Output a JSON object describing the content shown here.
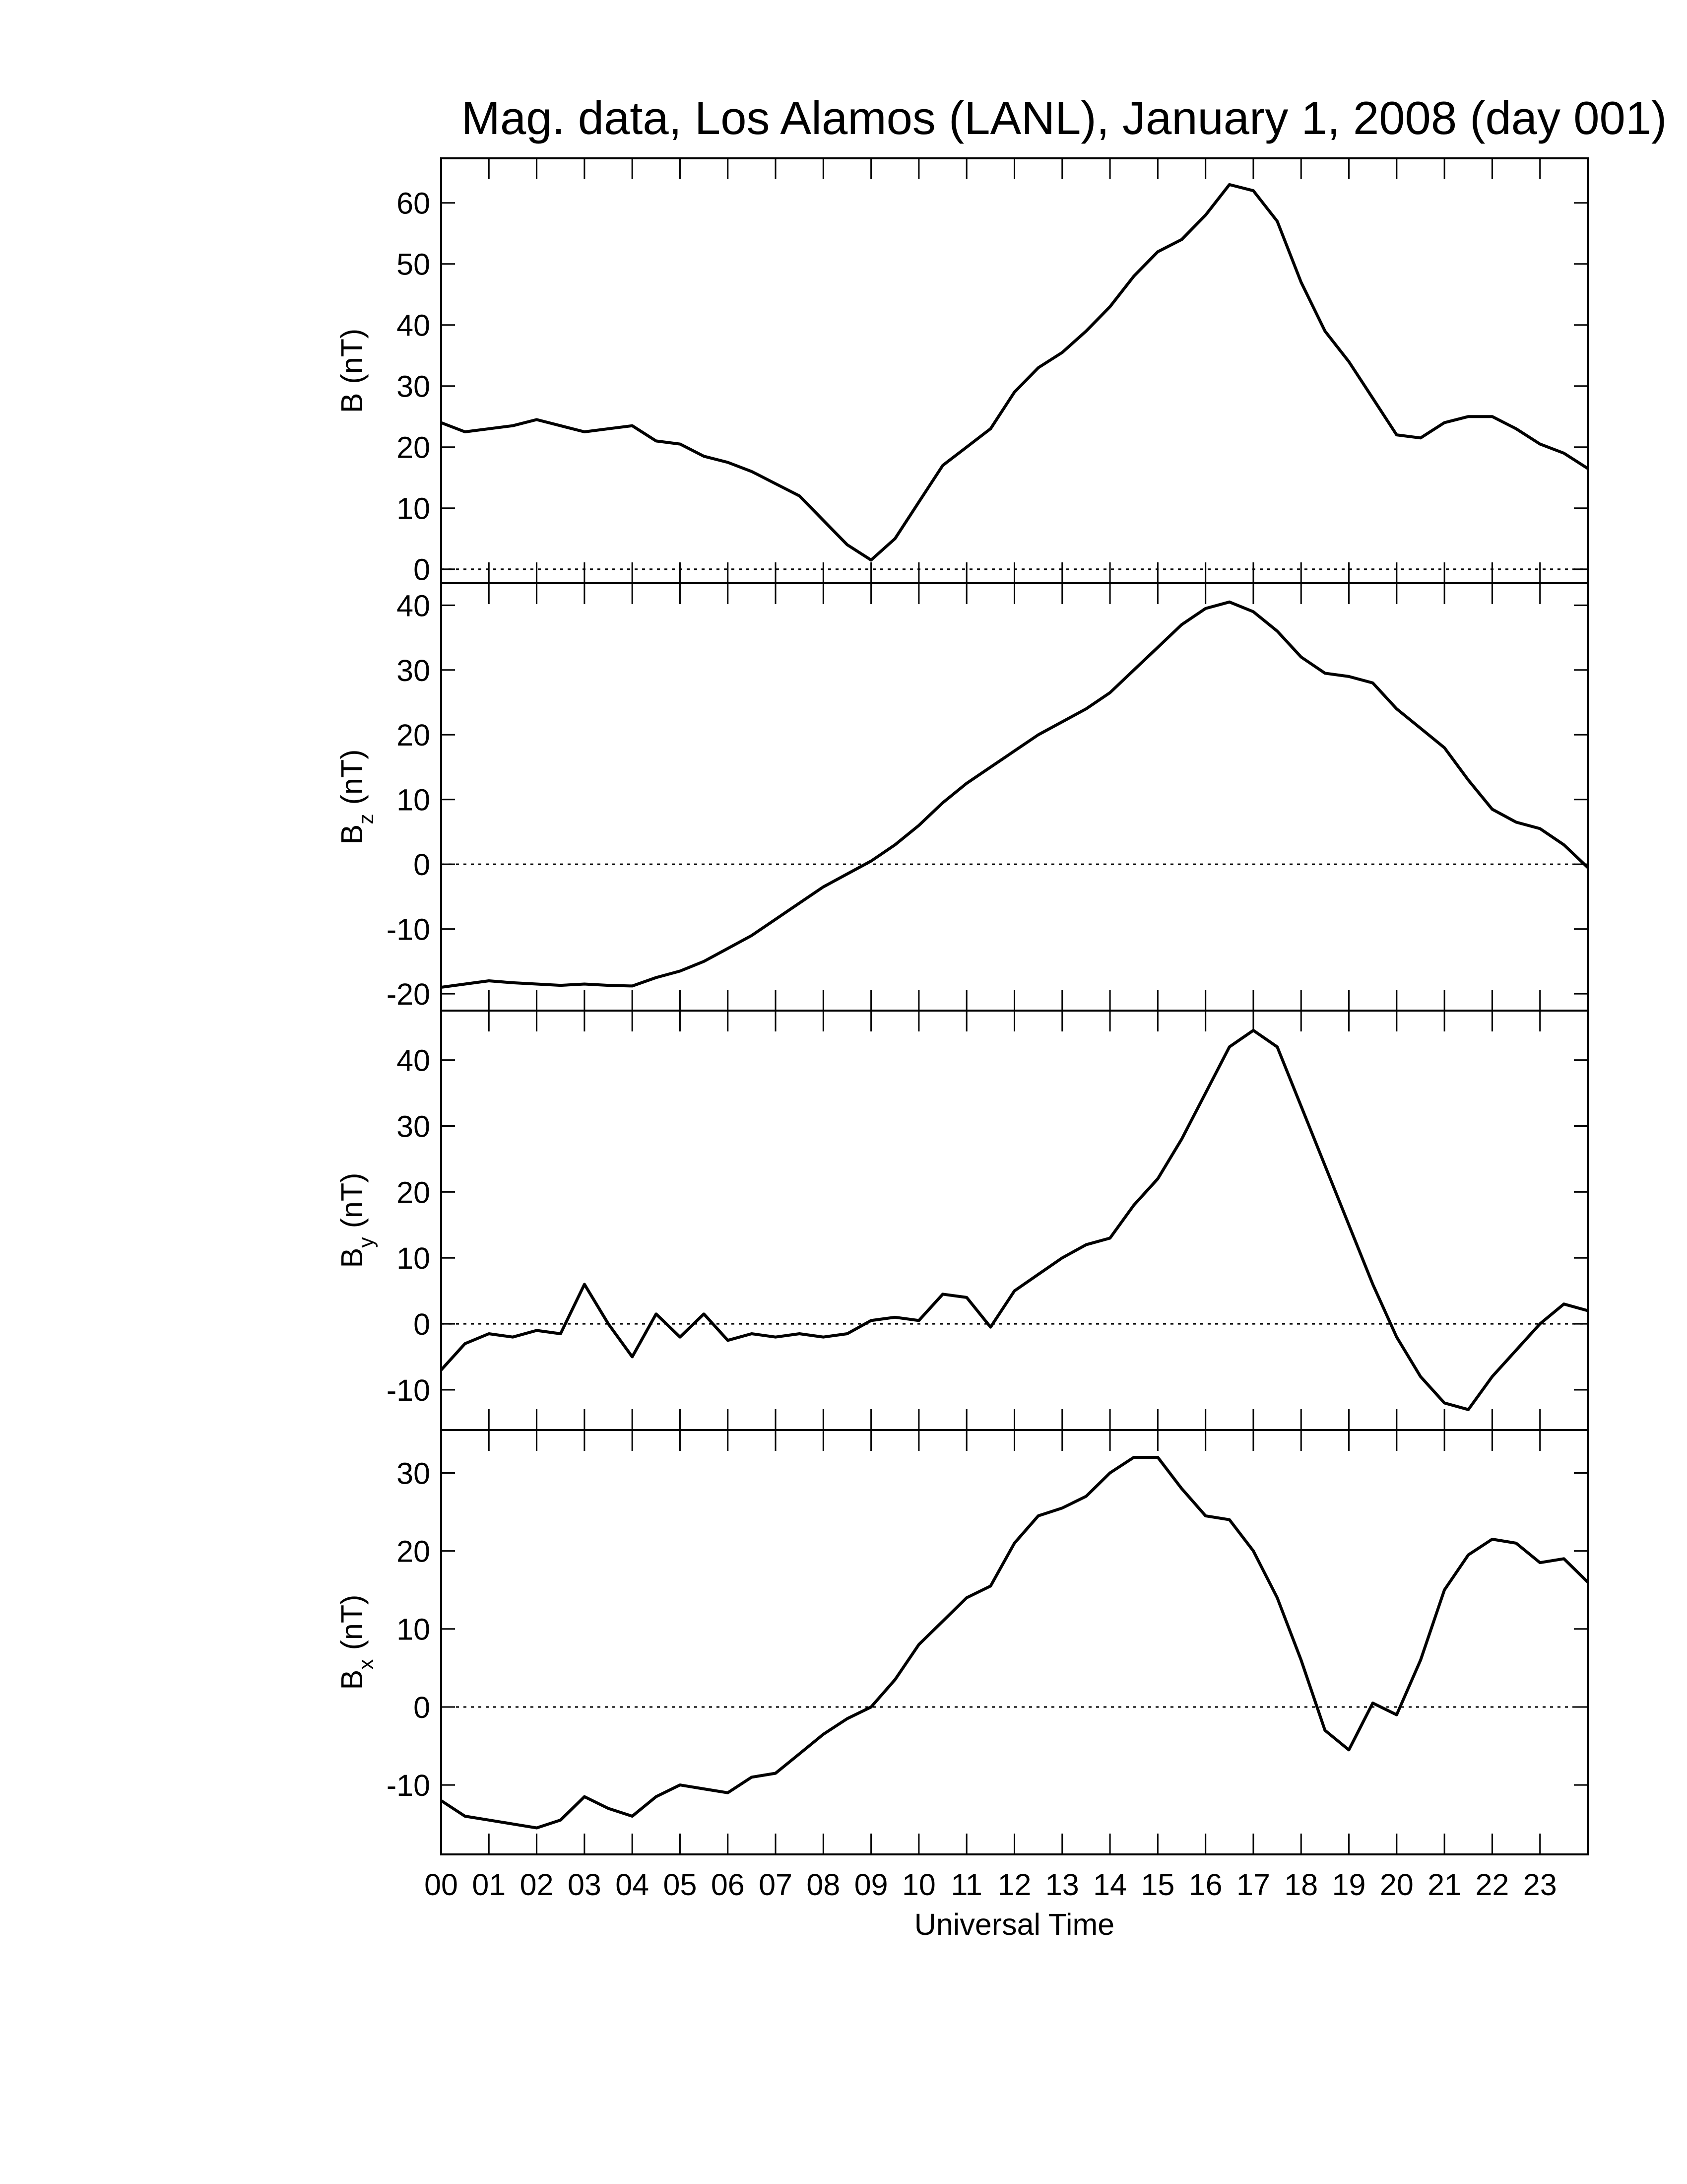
{
  "chart_data": [
    {
      "type": "line",
      "title": "Mag. data, Los Alamos (LANL), January 1, 2008 (day 001)",
      "ylabel": "B",
      "ylabel_unit": "(nT)",
      "color": "#000000",
      "zero_line": true,
      "x": [
        0,
        0.5,
        1,
        1.5,
        2,
        2.5,
        3,
        3.5,
        4,
        4.5,
        5,
        5.5,
        6,
        6.5,
        7,
        7.5,
        8,
        8.5,
        9,
        9.5,
        10,
        10.5,
        11,
        11.5,
        12,
        12.5,
        13,
        13.5,
        14,
        14.5,
        15,
        15.5,
        16,
        16.5,
        17,
        17.5,
        18,
        18.5,
        19,
        19.5,
        20,
        20.5,
        21,
        21.5,
        22,
        22.5,
        23,
        23.5,
        24
      ],
      "values": [
        24,
        22.5,
        23,
        23.5,
        24.5,
        23.5,
        22.5,
        23,
        23.5,
        21,
        20.5,
        18.5,
        17.5,
        16,
        14,
        12,
        8,
        4,
        1.5,
        5,
        11,
        17,
        20,
        23,
        29,
        33,
        35.5,
        39,
        43,
        48,
        52,
        54,
        58,
        63,
        62,
        57,
        47,
        39,
        34,
        28,
        22,
        21.5,
        24,
        25,
        25,
        23,
        20.5,
        19,
        16.5
      ],
      "xlim": [
        0,
        24
      ],
      "ylim": [
        -2.3,
        67.3
      ],
      "yticks": [
        0,
        10,
        20,
        30,
        40,
        50,
        60
      ]
    },
    {
      "type": "line",
      "ylabel": "B",
      "ylabel_sub": "z",
      "ylabel_unit": "(nT)",
      "color": "#000000",
      "zero_line": true,
      "x": [
        0,
        0.5,
        1,
        1.5,
        2,
        2.5,
        3,
        3.5,
        4,
        4.5,
        5,
        5.5,
        6,
        6.5,
        7,
        7.5,
        8,
        8.5,
        9,
        9.5,
        10,
        10.5,
        11,
        11.5,
        12,
        12.5,
        13,
        13.5,
        14,
        14.5,
        15,
        15.5,
        16,
        16.5,
        17,
        17.5,
        18,
        18.5,
        19,
        19.5,
        20,
        20.5,
        21,
        21.5,
        22,
        22.5,
        23,
        23.5,
        24
      ],
      "values": [
        -19,
        -18.5,
        -18,
        -18.3,
        -18.5,
        -18.7,
        -18.5,
        -18.7,
        -18.8,
        -17.5,
        -16.5,
        -15,
        -13,
        -11,
        -8.5,
        -6,
        -3.5,
        -1.5,
        0.5,
        3,
        6,
        9.5,
        12.5,
        15,
        17.5,
        20,
        22,
        24,
        26.5,
        30,
        33.5,
        37,
        39.5,
        40.5,
        39,
        36,
        32,
        29.5,
        29,
        28,
        24,
        21,
        18,
        13,
        8.5,
        6.5,
        5.5,
        3,
        -0.5
      ],
      "xlim": [
        0,
        24
      ],
      "ylim": [
        -22.6,
        43.4
      ],
      "yticks": [
        -20,
        -10,
        0,
        10,
        20,
        30,
        40
      ]
    },
    {
      "type": "line",
      "ylabel": "B",
      "ylabel_sub": "y",
      "ylabel_unit": "(nT)",
      "color": "#000000",
      "zero_line": true,
      "x": [
        0,
        0.5,
        1,
        1.5,
        2,
        2.5,
        3,
        3.5,
        4,
        4.5,
        5,
        5.5,
        6,
        6.5,
        7,
        7.5,
        8,
        8.5,
        9,
        9.5,
        10,
        10.5,
        11,
        11.5,
        12,
        12.5,
        13,
        13.5,
        14,
        14.5,
        15,
        15.5,
        16,
        16.5,
        17,
        17.5,
        18,
        18.5,
        19,
        19.5,
        20,
        20.5,
        21,
        21.5,
        22,
        22.5,
        23,
        23.5,
        24
      ],
      "values": [
        -7,
        -3,
        -1.5,
        -2,
        -1,
        -1.5,
        6,
        0,
        -5,
        1.5,
        -2,
        1.5,
        -2.5,
        -1.5,
        -2,
        -1.5,
        -2,
        -1.5,
        0.5,
        1,
        0.5,
        4.5,
        4,
        -0.5,
        5,
        7.5,
        10,
        12,
        13,
        18,
        22,
        28,
        35,
        42,
        44.5,
        42,
        33,
        24,
        15,
        6,
        -2,
        -8,
        -12,
        -13,
        -8,
        -4,
        0,
        3,
        2
      ],
      "xlim": [
        0,
        24
      ],
      "ylim": [
        -16.1,
        47.5
      ],
      "yticks": [
        -10,
        0,
        10,
        20,
        30,
        40
      ]
    },
    {
      "type": "line",
      "ylabel": "B",
      "ylabel_sub": "x",
      "ylabel_unit": "(nT)",
      "color": "#000000",
      "zero_line": true,
      "xlabel": "Universal Time",
      "x": [
        0,
        0.5,
        1,
        1.5,
        2,
        2.5,
        3,
        3.5,
        4,
        4.5,
        5,
        5.5,
        6,
        6.5,
        7,
        7.5,
        8,
        8.5,
        9,
        9.5,
        10,
        10.5,
        11,
        11.5,
        12,
        12.5,
        13,
        13.5,
        14,
        14.5,
        15,
        15.5,
        16,
        16.5,
        17,
        17.5,
        18,
        18.5,
        19,
        19.5,
        20,
        20.5,
        21,
        21.5,
        22,
        22.5,
        23,
        23.5,
        24
      ],
      "values": [
        -12,
        -14,
        -14.5,
        -15,
        -15.5,
        -14.5,
        -11.5,
        -13,
        -14,
        -11.5,
        -10,
        -10.5,
        -11,
        -9,
        -8.5,
        -6,
        -3.5,
        -1.5,
        0,
        3.5,
        8,
        11,
        14,
        15.5,
        21,
        24.5,
        25.5,
        27,
        30,
        32,
        32,
        28,
        24.5,
        24,
        20,
        14,
        6,
        -3,
        -5.5,
        0.5,
        -1,
        6,
        15,
        19.5,
        21.5,
        21,
        18.5,
        19,
        16
      ],
      "xlim": [
        0,
        24
      ],
      "ylim": [
        -18.9,
        35.5
      ],
      "yticks": [
        -10,
        0,
        10,
        20,
        30
      ],
      "xticks": [
        {
          "value": 0,
          "label": "00"
        },
        {
          "value": 1,
          "label": "01"
        },
        {
          "value": 2,
          "label": "02"
        },
        {
          "value": 3,
          "label": "03"
        },
        {
          "value": 4,
          "label": "04"
        },
        {
          "value": 5,
          "label": "05"
        },
        {
          "value": 6,
          "label": "06"
        },
        {
          "value": 7,
          "label": "07"
        },
        {
          "value": 8,
          "label": "08"
        },
        {
          "value": 9,
          "label": "09"
        },
        {
          "value": 10,
          "label": "10"
        },
        {
          "value": 11,
          "label": "11"
        },
        {
          "value": 12,
          "label": "12"
        },
        {
          "value": 13,
          "label": "13"
        },
        {
          "value": 14,
          "label": "14"
        },
        {
          "value": 15,
          "label": "15"
        },
        {
          "value": 16,
          "label": "16"
        },
        {
          "value": 17,
          "label": "17"
        },
        {
          "value": 18,
          "label": "18"
        },
        {
          "value": 19,
          "label": "19"
        },
        {
          "value": 20,
          "label": "20"
        },
        {
          "value": 21,
          "label": "21"
        },
        {
          "value": 22,
          "label": "22"
        },
        {
          "value": 23,
          "label": "23"
        }
      ]
    }
  ]
}
